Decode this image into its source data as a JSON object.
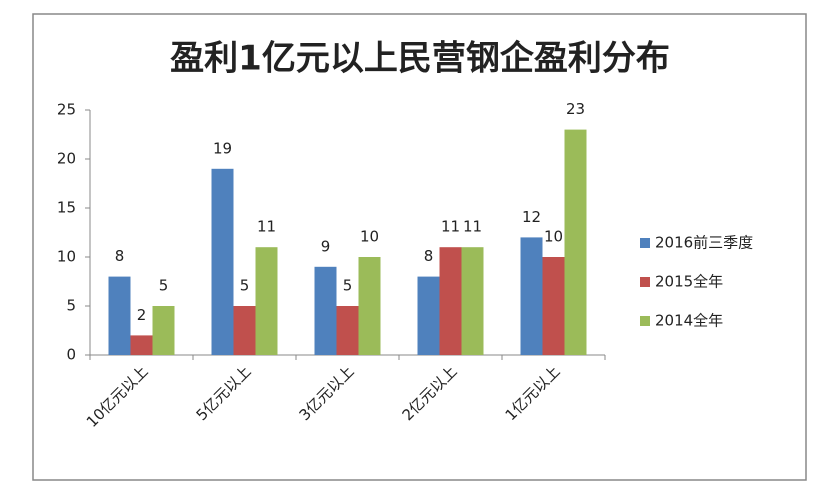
{
  "chart_data": {
    "type": "bar",
    "title": "盈利1亿元以上民营钢企盈利分布",
    "categories": [
      "10亿元以上",
      "5亿元以上",
      "3亿元以上",
      "2亿元以上",
      "1亿元以上"
    ],
    "series": [
      {
        "name": "2016前三季度",
        "color": "#4f81bd",
        "values": [
          8,
          19,
          9,
          8,
          12
        ]
      },
      {
        "name": "2015全年",
        "color": "#c0504d",
        "values": [
          2,
          5,
          5,
          11,
          10
        ]
      },
      {
        "name": "2014全年",
        "color": "#9bbb59",
        "values": [
          5,
          11,
          10,
          11,
          23
        ]
      }
    ],
    "ylim": [
      0,
      25
    ],
    "yticks": [
      0,
      5,
      10,
      15,
      20,
      25
    ],
    "grid": false,
    "legend": "right"
  }
}
